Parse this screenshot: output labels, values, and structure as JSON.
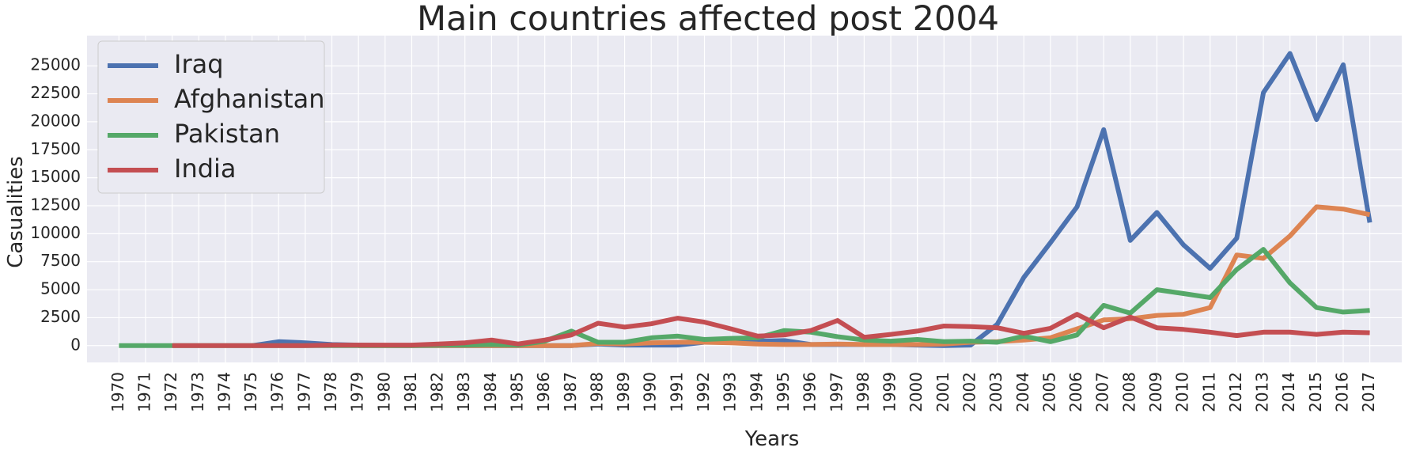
{
  "chart_data": {
    "type": "line",
    "title": "Main countries affected post 2004",
    "xlabel": "Years",
    "ylabel": "Casualities",
    "ylim": [
      -1500,
      27700
    ],
    "yticks": [
      0,
      2500,
      5000,
      7500,
      10000,
      12500,
      15000,
      17500,
      20000,
      22500,
      25000
    ],
    "grid": true,
    "legend_position": "top-left",
    "x": [
      1970,
      1971,
      1972,
      1973,
      1974,
      1975,
      1976,
      1977,
      1978,
      1979,
      1980,
      1981,
      1982,
      1983,
      1984,
      1985,
      1986,
      1987,
      1988,
      1989,
      1990,
      1991,
      1992,
      1993,
      1994,
      1995,
      1996,
      1997,
      1998,
      1999,
      2000,
      2001,
      2002,
      2003,
      2004,
      2005,
      2006,
      2007,
      2008,
      2009,
      2010,
      2011,
      2012,
      2013,
      2014,
      2015,
      2016,
      2017
    ],
    "series": [
      {
        "name": "Iraq",
        "color": "#4c72b0",
        "x": [
          1975,
          1976,
          1977,
          1978,
          1979,
          1980,
          1981,
          1982,
          1983,
          1984,
          1985,
          1986,
          1987,
          1988,
          1989,
          1990,
          1991,
          1992,
          1993,
          1994,
          1995,
          1996,
          1997,
          1998,
          1999,
          2000,
          2001,
          2002,
          2003,
          2004,
          2005,
          2006,
          2007,
          2008,
          2009,
          2010,
          2011,
          2012,
          2013,
          2014,
          2015,
          2016,
          2017
        ],
        "values": [
          0,
          350,
          250,
          100,
          50,
          20,
          10,
          0,
          0,
          0,
          0,
          0,
          0,
          150,
          50,
          50,
          50,
          300,
          350,
          400,
          450,
          100,
          100,
          100,
          100,
          50,
          0,
          50,
          1900,
          6100,
          9200,
          12400,
          19300,
          9400,
          11900,
          9000,
          6900,
          9600,
          22600,
          26100,
          20200,
          25100,
          11000
        ]
      },
      {
        "name": "Afghanistan",
        "color": "#dd8452",
        "x": [
          1979,
          1980,
          1981,
          1982,
          1983,
          1984,
          1985,
          1986,
          1987,
          1988,
          1989,
          1990,
          1991,
          1992,
          1993,
          1994,
          1995,
          1996,
          1997,
          1998,
          1999,
          2000,
          2001,
          2002,
          2003,
          2004,
          2005,
          2006,
          2007,
          2008,
          2009,
          2010,
          2011,
          2012,
          2013,
          2014,
          2015,
          2016,
          2017
        ],
        "values": [
          0,
          0,
          0,
          0,
          0,
          0,
          0,
          0,
          0,
          200,
          150,
          250,
          300,
          300,
          250,
          150,
          100,
          100,
          150,
          100,
          100,
          100,
          150,
          300,
          350,
          500,
          700,
          1500,
          2300,
          2400,
          2700,
          2800,
          3400,
          8100,
          7800,
          9800,
          12400,
          12200,
          11700
        ]
      },
      {
        "name": "Pakistan",
        "color": "#55a868",
        "x": [
          1970,
          1971,
          1972,
          1980,
          1981,
          1982,
          1983,
          1984,
          1985,
          1986,
          1987,
          1988,
          1989,
          1990,
          1991,
          1992,
          1993,
          1994,
          1995,
          1996,
          1997,
          1998,
          1999,
          2000,
          2001,
          2002,
          2003,
          2004,
          2005,
          2006,
          2007,
          2008,
          2009,
          2010,
          2011,
          2012,
          2013,
          2014,
          2015,
          2016,
          2017
        ],
        "values": [
          0,
          0,
          0,
          0,
          0,
          50,
          50,
          100,
          50,
          400,
          1300,
          300,
          300,
          700,
          850,
          550,
          650,
          700,
          1350,
          1200,
          800,
          500,
          400,
          550,
          350,
          400,
          300,
          850,
          350,
          950,
          3600,
          2900,
          5000,
          4650,
          4300,
          6800,
          8600,
          5600,
          3400,
          3000,
          3150
        ]
      },
      {
        "name": "India",
        "color": "#c44e52",
        "x": [
          1972,
          1973,
          1974,
          1975,
          1976,
          1977,
          1978,
          1979,
          1980,
          1981,
          1982,
          1983,
          1984,
          1985,
          1986,
          1987,
          1988,
          1989,
          1990,
          1991,
          1992,
          1993,
          1994,
          1995,
          1996,
          1997,
          1998,
          1999,
          2000,
          2001,
          2002,
          2003,
          2004,
          2005,
          2006,
          2007,
          2008,
          2009,
          2010,
          2011,
          2012,
          2013,
          2014,
          2015,
          2016,
          2017
        ],
        "values": [
          0,
          0,
          0,
          0,
          0,
          0,
          50,
          50,
          50,
          50,
          150,
          250,
          500,
          150,
          500,
          950,
          2000,
          1650,
          1950,
          2450,
          2100,
          1500,
          850,
          950,
          1350,
          2250,
          750,
          1000,
          1300,
          1750,
          1700,
          1600,
          1100,
          1550,
          2800,
          1600,
          2550,
          1600,
          1450,
          1200,
          900,
          1200,
          1200,
          1000,
          1200,
          1150
        ]
      }
    ]
  }
}
